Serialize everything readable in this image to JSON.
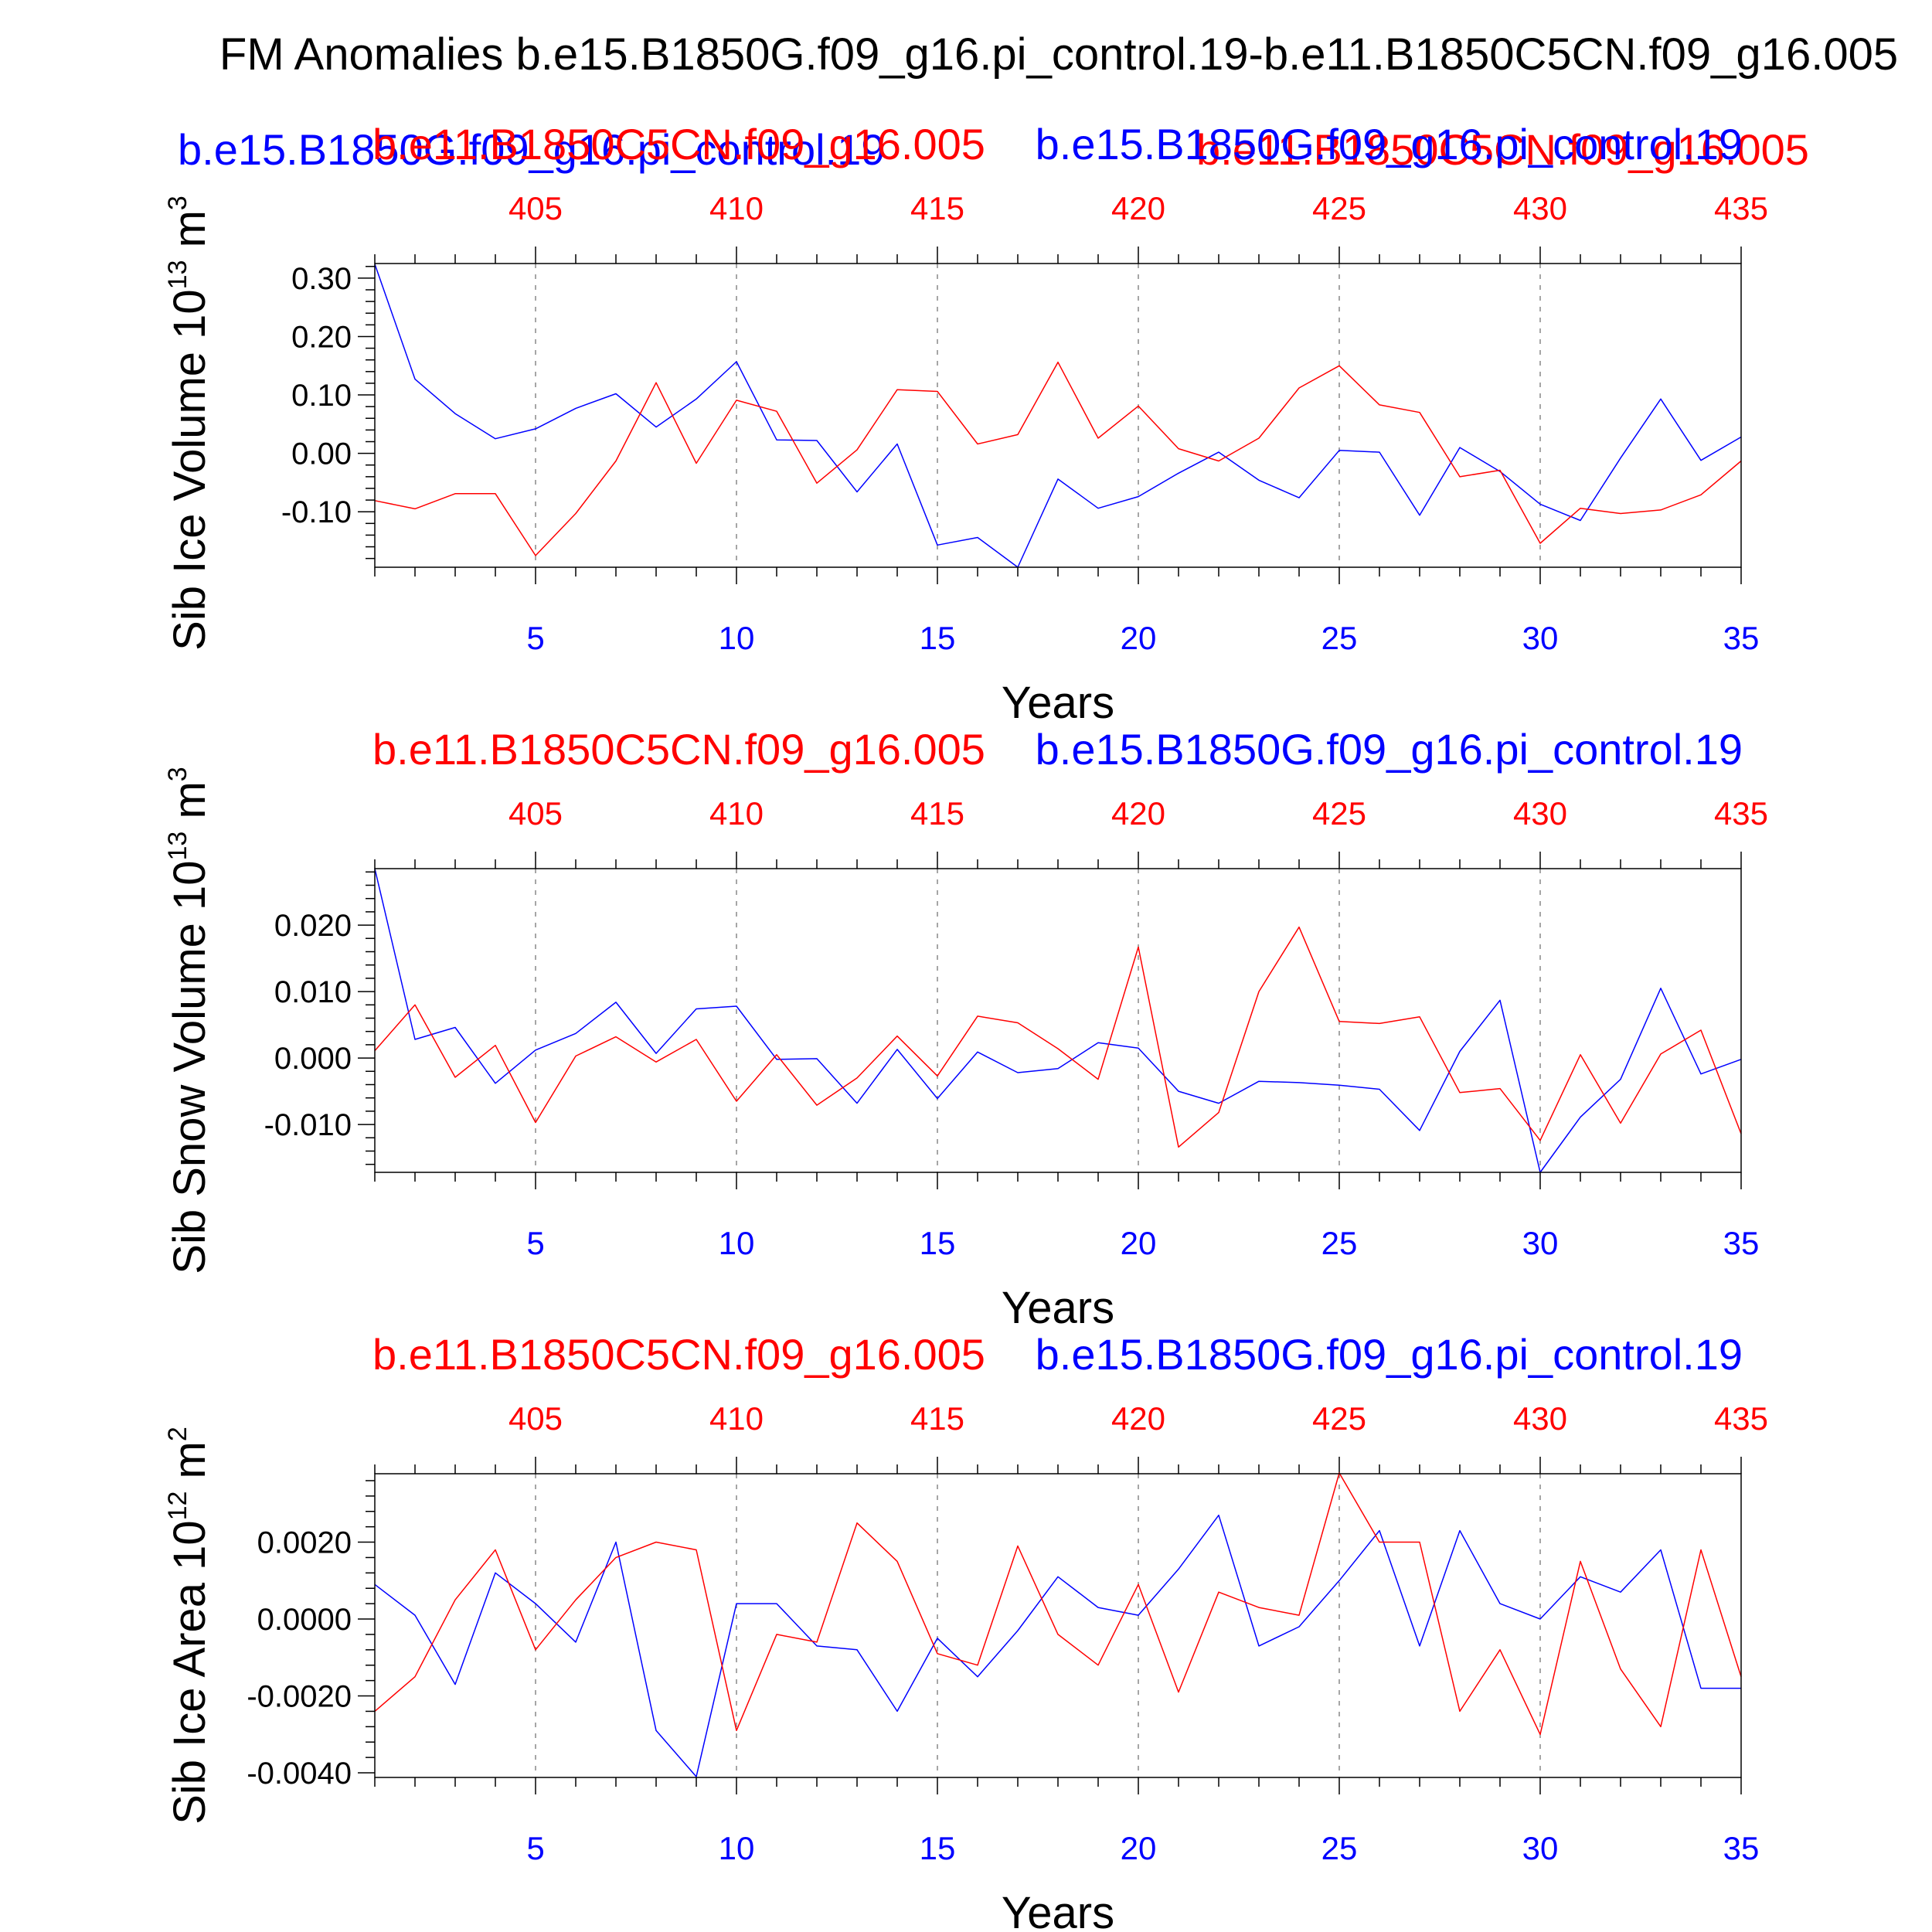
{
  "page_title": "FM Anomalies b.e15.B1850G.f09_g16.pi_control.19-b.e11.B1850C5CN.f09_g16.005",
  "colors": {
    "blue": "#0000ff",
    "red": "#ff0000",
    "axis": "#000000",
    "grid": "#888888"
  },
  "top_overlay_labels": {
    "blue_left": "b.e15.B1850G.f09_g16.pi_control.19",
    "red_right": "b.e11.B1850C5CN.f09_g16.005"
  },
  "chart_data": [
    {
      "type": "line",
      "panel": "top",
      "legend_left": "b.e11.B1850C5CN.f09_g16.005",
      "legend_right": "b.e15.B1850G.f09_g16.pi_control.19",
      "ylabel": "Sib Ice Volume 10",
      "ylabel_exp": "13",
      "ylabel_unit": " m",
      "ylabel_unit_exp": "3",
      "xlabel": "Years",
      "ylim": [
        -0.195,
        0.325
      ],
      "yticks": [
        -0.1,
        0.0,
        0.1,
        0.2,
        0.3
      ],
      "ytick_labels": [
        "-0.10",
        "0.00",
        "0.10",
        "0.20",
        "0.30"
      ],
      "yminor_step": 0.02,
      "xlim": [
        1,
        35
      ],
      "bottom_ticks": [
        5,
        10,
        15,
        20,
        25,
        30,
        35
      ],
      "bottom_tick_labels": [
        "5",
        "10",
        "15",
        "20",
        "25",
        "30",
        "35"
      ],
      "top_tick_labels": [
        "405",
        "410",
        "415",
        "420",
        "425",
        "430",
        "435"
      ],
      "x": [
        1,
        2,
        3,
        4,
        5,
        6,
        7,
        8,
        9,
        10,
        11,
        12,
        13,
        14,
        15,
        16,
        17,
        18,
        19,
        20,
        21,
        22,
        23,
        24,
        25,
        26,
        27,
        28,
        29,
        30,
        31,
        32,
        33,
        34,
        35
      ],
      "series": [
        {
          "color": "#0000ff",
          "values": [
            0.324,
            0.127,
            0.068,
            0.025,
            0.042,
            0.077,
            0.102,
            0.045,
            0.093,
            0.157,
            0.023,
            0.022,
            -0.066,
            0.016,
            -0.157,
            -0.144,
            -0.195,
            -0.044,
            -0.094,
            -0.074,
            -0.034,
            0.002,
            -0.046,
            -0.076,
            0.005,
            0.002,
            -0.106,
            0.01,
            -0.031,
            -0.087,
            -0.115,
            -0.008,
            0.093,
            -0.012,
            0.028
          ]
        },
        {
          "color": "#ff0000",
          "values": [
            -0.081,
            -0.095,
            -0.069,
            -0.069,
            -0.175,
            -0.103,
            -0.013,
            0.121,
            -0.017,
            0.091,
            0.072,
            -0.051,
            0.006,
            0.109,
            0.106,
            0.016,
            0.032,
            0.156,
            0.026,
            0.081,
            0.008,
            -0.013,
            0.026,
            0.112,
            0.15,
            0.083,
            0.07,
            -0.04,
            -0.029,
            -0.154,
            -0.094,
            -0.103,
            -0.097,
            -0.071,
            -0.013
          ]
        }
      ]
    },
    {
      "type": "line",
      "panel": "middle",
      "legend_left": "b.e11.B1850C5CN.f09_g16.005",
      "legend_right": "b.e15.B1850G.f09_g16.pi_control.19",
      "ylabel": "Sib Snow Volume 10",
      "ylabel_exp": "13",
      "ylabel_unit": " m",
      "ylabel_unit_exp": "3",
      "xlabel": "Years",
      "ylim": [
        -0.0172,
        0.0285
      ],
      "yticks": [
        -0.01,
        0.0,
        0.01,
        0.02
      ],
      "ytick_labels": [
        "-0.010",
        "0.000",
        "0.010",
        "0.020"
      ],
      "yminor_step": 0.002,
      "xlim": [
        1,
        35
      ],
      "bottom_ticks": [
        5,
        10,
        15,
        20,
        25,
        30,
        35
      ],
      "bottom_tick_labels": [
        "5",
        "10",
        "15",
        "20",
        "25",
        "30",
        "35"
      ],
      "top_tick_labels": [
        "405",
        "410",
        "415",
        "420",
        "425",
        "430",
        "435"
      ],
      "x": [
        1,
        2,
        3,
        4,
        5,
        6,
        7,
        8,
        9,
        10,
        11,
        12,
        13,
        14,
        15,
        16,
        17,
        18,
        19,
        20,
        21,
        22,
        23,
        24,
        25,
        26,
        27,
        28,
        29,
        30,
        31,
        32,
        33,
        34,
        35
      ],
      "series": [
        {
          "color": "#0000ff",
          "values": [
            0.0285,
            0.0028,
            0.0046,
            -0.0038,
            0.0012,
            0.0037,
            0.0084,
            0.0007,
            0.0074,
            0.0078,
            -0.0002,
            -0.0001,
            -0.0068,
            0.0013,
            -0.0061,
            0.0009,
            -0.0022,
            -0.0016,
            0.0023,
            0.0015,
            -0.005,
            -0.0068,
            -0.0035,
            -0.0037,
            -0.0041,
            -0.0047,
            -0.0109,
            0.001,
            0.0087,
            -0.0172,
            -0.0089,
            -0.0032,
            0.0105,
            -0.0024,
            -0.0002
          ]
        },
        {
          "color": "#ff0000",
          "values": [
            0.0011,
            0.008,
            -0.0029,
            0.0019,
            -0.0097,
            0.0003,
            0.0032,
            -0.0006,
            0.0028,
            -0.0065,
            0.0005,
            -0.0071,
            -0.003,
            0.0033,
            -0.0027,
            0.0063,
            0.0053,
            0.0014,
            -0.0032,
            0.0167,
            -0.0134,
            -0.0082,
            0.01,
            0.0197,
            0.0055,
            0.0052,
            0.0062,
            -0.0052,
            -0.0046,
            -0.0124,
            0.0005,
            -0.0098,
            0.0006,
            0.0042,
            -0.0114
          ]
        }
      ]
    },
    {
      "type": "line",
      "panel": "bottom",
      "legend_left": "b.e11.B1850C5CN.f09_g16.005",
      "legend_right": "b.e15.B1850G.f09_g16.pi_control.19",
      "ylabel": "Sib Ice Area 10",
      "ylabel_exp": "12",
      "ylabel_unit": " m",
      "ylabel_unit_exp": "2",
      "xlabel": "Years",
      "ylim": [
        -0.00412,
        0.00378
      ],
      "yticks": [
        -0.004,
        -0.002,
        0.0,
        0.002
      ],
      "ytick_labels": [
        "-0.0040",
        "-0.0020",
        "0.0000",
        "0.0020"
      ],
      "yminor_step": 0.0004,
      "xlim": [
        1,
        35
      ],
      "bottom_ticks": [
        5,
        10,
        15,
        20,
        25,
        30,
        35
      ],
      "bottom_tick_labels": [
        "5",
        "10",
        "15",
        "20",
        "25",
        "30",
        "35"
      ],
      "top_tick_labels": [
        "405",
        "410",
        "415",
        "420",
        "425",
        "430",
        "435"
      ],
      "x": [
        1,
        2,
        3,
        4,
        5,
        6,
        7,
        8,
        9,
        10,
        11,
        12,
        13,
        14,
        15,
        16,
        17,
        18,
        19,
        20,
        21,
        22,
        23,
        24,
        25,
        26,
        27,
        28,
        29,
        30,
        31,
        32,
        33,
        34,
        35
      ],
      "series": [
        {
          "color": "#0000ff",
          "values": [
            0.0009,
            0.0001,
            -0.0017,
            0.0012,
            0.0004,
            -0.0006,
            0.002,
            -0.0029,
            -0.0041,
            0.0004,
            0.0004,
            -0.0007,
            -0.0008,
            -0.0024,
            -0.0005,
            -0.0015,
            -0.0003,
            0.0011,
            0.0003,
            0.0001,
            0.0013,
            0.0027,
            -0.0007,
            -0.0002,
            0.001,
            0.0023,
            -0.0007,
            0.0023,
            0.0004,
            0.0,
            0.0011,
            0.0007,
            0.0018,
            -0.0018,
            -0.0018
          ]
        },
        {
          "color": "#ff0000",
          "values": [
            -0.0024,
            -0.0015,
            0.0005,
            0.0018,
            -0.0008,
            0.0005,
            0.0016,
            0.002,
            0.0018,
            -0.0029,
            -0.0004,
            -0.0006,
            0.0025,
            0.0015,
            -0.0009,
            -0.0012,
            0.0019,
            -0.0004,
            -0.0012,
            0.0009,
            -0.0019,
            0.0007,
            0.0003,
            0.0001,
            0.0038,
            0.002,
            0.002,
            -0.0024,
            -0.0008,
            -0.003,
            0.0015,
            -0.0013,
            -0.0028,
            0.0018,
            -0.0015
          ]
        }
      ]
    }
  ]
}
